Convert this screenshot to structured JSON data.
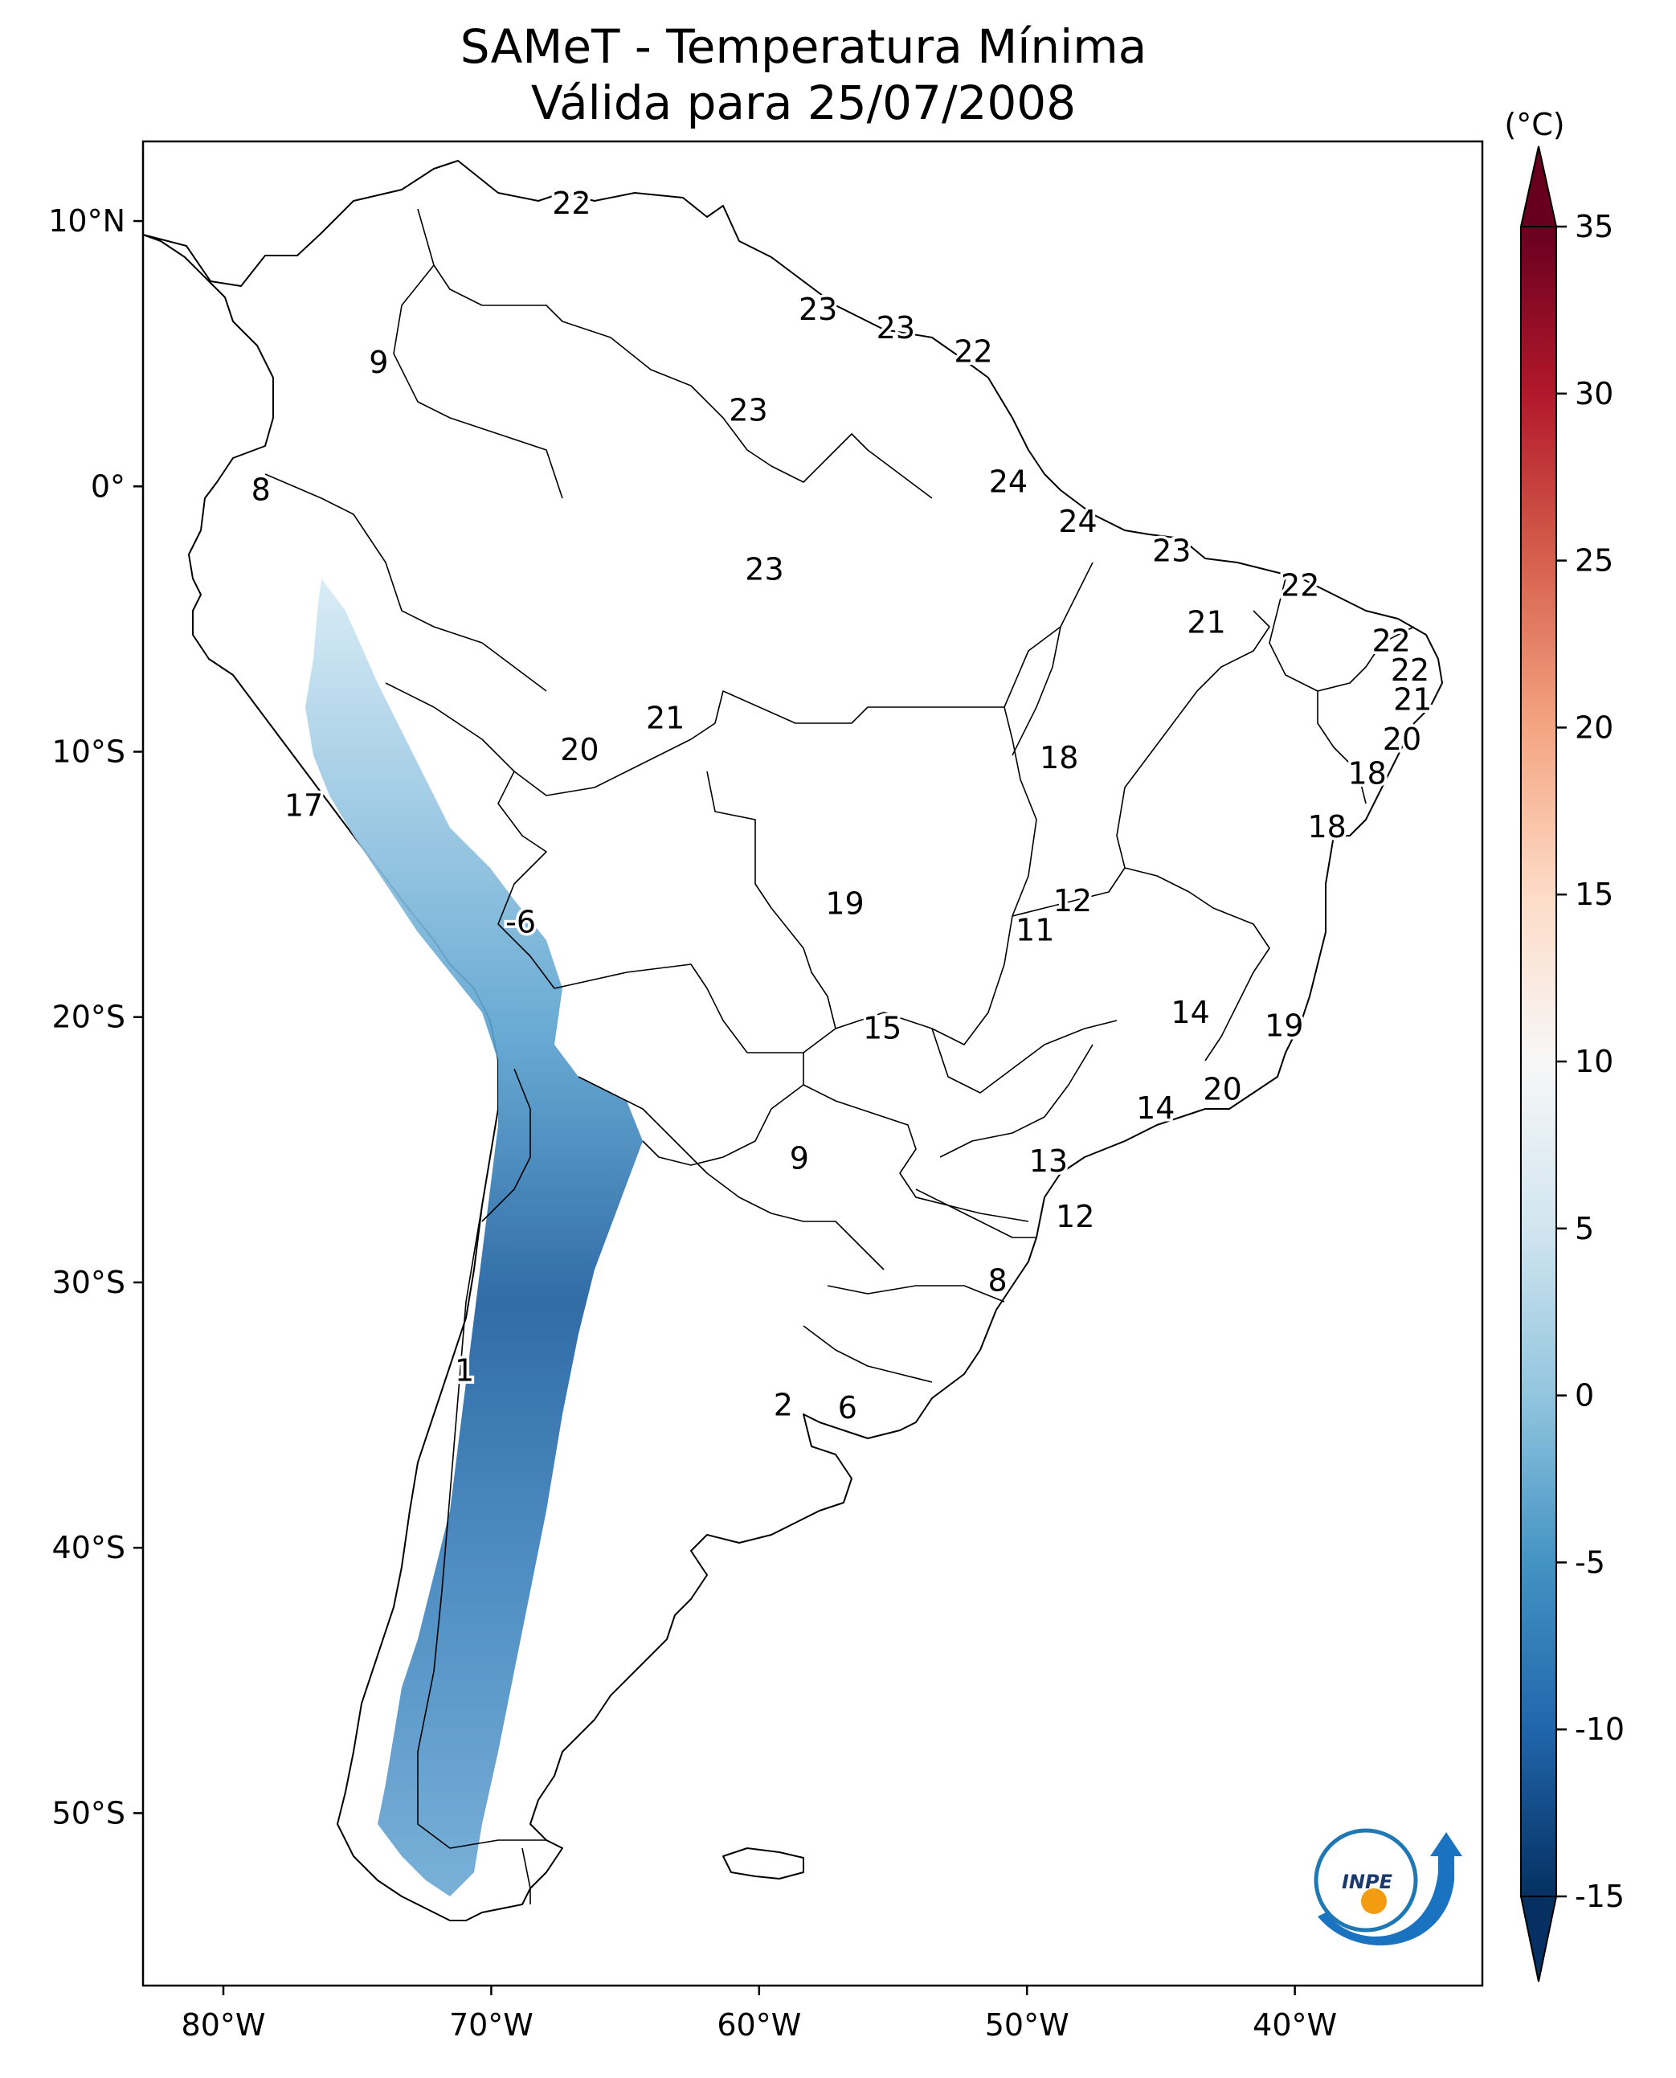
{
  "title": {
    "line1": "SAMeT - Temperatura Mínima",
    "line2": "Válida para 25/07/2008"
  },
  "map": {
    "lon_range": [
      -83,
      -33
    ],
    "lat_range": [
      -56.5,
      13
    ],
    "x_ticks": [
      {
        "lon": -80,
        "label": "80°W"
      },
      {
        "lon": -70,
        "label": "70°W"
      },
      {
        "lon": -60,
        "label": "60°W"
      },
      {
        "lon": -50,
        "label": "50°W"
      },
      {
        "lon": -40,
        "label": "40°W"
      }
    ],
    "y_ticks": [
      {
        "lat": 10,
        "label": "10°N"
      },
      {
        "lat": 0,
        "label": "0°"
      },
      {
        "lat": -10,
        "label": "10°S"
      },
      {
        "lat": -20,
        "label": "20°S"
      },
      {
        "lat": -30,
        "label": "30°S"
      },
      {
        "lat": -40,
        "label": "40°S"
      },
      {
        "lat": -50,
        "label": "50°S"
      }
    ],
    "value_labels": [
      {
        "lon": -67.0,
        "lat": 10.6,
        "text": "22"
      },
      {
        "lon": -57.8,
        "lat": 6.6,
        "text": "23"
      },
      {
        "lon": -54.9,
        "lat": 5.9,
        "text": "23"
      },
      {
        "lon": -52.0,
        "lat": 5.0,
        "text": "22"
      },
      {
        "lon": -60.4,
        "lat": 2.8,
        "text": "23"
      },
      {
        "lon": -74.2,
        "lat": 4.6,
        "text": "9"
      },
      {
        "lon": -78.6,
        "lat": -0.2,
        "text": "8"
      },
      {
        "lon": -50.7,
        "lat": 0.1,
        "text": "24"
      },
      {
        "lon": -48.1,
        "lat": -1.4,
        "text": "24"
      },
      {
        "lon": -44.6,
        "lat": -2.5,
        "text": "23"
      },
      {
        "lon": -59.8,
        "lat": -3.2,
        "text": "23"
      },
      {
        "lon": -39.8,
        "lat": -3.8,
        "text": "22"
      },
      {
        "lon": -43.3,
        "lat": -5.2,
        "text": "21"
      },
      {
        "lon": -36.4,
        "lat": -5.9,
        "text": "22"
      },
      {
        "lon": -35.7,
        "lat": -7.0,
        "text": "22"
      },
      {
        "lon": -35.6,
        "lat": -8.1,
        "text": "21"
      },
      {
        "lon": -63.5,
        "lat": -8.8,
        "text": "21"
      },
      {
        "lon": -66.7,
        "lat": -10.0,
        "text": "20"
      },
      {
        "lon": -48.8,
        "lat": -10.3,
        "text": "18"
      },
      {
        "lon": -36.0,
        "lat": -9.6,
        "text": "20"
      },
      {
        "lon": -37.3,
        "lat": -10.9,
        "text": "18"
      },
      {
        "lon": -77.0,
        "lat": -12.1,
        "text": "17"
      },
      {
        "lon": -38.8,
        "lat": -12.9,
        "text": "18"
      },
      {
        "lon": -56.8,
        "lat": -15.8,
        "text": "19"
      },
      {
        "lon": -48.3,
        "lat": -15.7,
        "text": "12"
      },
      {
        "lon": -49.7,
        "lat": -16.8,
        "text": "11"
      },
      {
        "lon": -68.9,
        "lat": -16.5,
        "text": "-6"
      },
      {
        "lon": -43.9,
        "lat": -19.9,
        "text": "14"
      },
      {
        "lon": -55.4,
        "lat": -20.5,
        "text": "15"
      },
      {
        "lon": -40.4,
        "lat": -20.4,
        "text": "19"
      },
      {
        "lon": -42.7,
        "lat": -22.8,
        "text": "20"
      },
      {
        "lon": -45.2,
        "lat": -23.5,
        "text": "14"
      },
      {
        "lon": -58.5,
        "lat": -25.4,
        "text": "9"
      },
      {
        "lon": -49.2,
        "lat": -25.5,
        "text": "13"
      },
      {
        "lon": -48.2,
        "lat": -27.6,
        "text": "12"
      },
      {
        "lon": -51.1,
        "lat": -30.0,
        "text": "8"
      },
      {
        "lon": -71.0,
        "lat": -33.4,
        "text": "1"
      },
      {
        "lon": -59.1,
        "lat": -34.7,
        "text": "2"
      },
      {
        "lon": -56.7,
        "lat": -34.8,
        "text": "6"
      }
    ]
  },
  "colorbar": {
    "unit_label": "(°C)",
    "vmin": -15,
    "vmax": 35,
    "ticks": [
      "-15",
      "-10",
      "-5",
      "0",
      "5",
      "10",
      "15",
      "20",
      "25",
      "30",
      "35"
    ],
    "colors": [
      "#053061",
      "#2166ac",
      "#4393c3",
      "#92c5de",
      "#d1e5f0",
      "#f7f7f7",
      "#fddbc7",
      "#f4a582",
      "#d6604d",
      "#b2182b",
      "#67001f"
    ]
  },
  "logo": {
    "text": "INPE"
  }
}
